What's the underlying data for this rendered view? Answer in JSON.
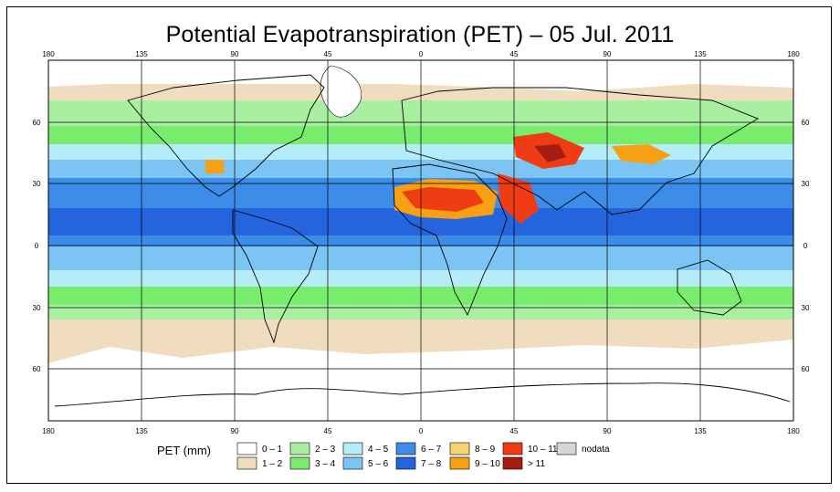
{
  "title": "Potential Evapotranspiration (PET) – 05 Jul. 2011",
  "map": {
    "lon_labels": [
      "180",
      "135",
      "90",
      "45",
      "0",
      "45",
      "90",
      "135",
      "180"
    ],
    "lat_labels": [
      "60",
      "30",
      "0",
      "30",
      "60"
    ]
  },
  "legend": {
    "title": "PET (mm)",
    "items": [
      {
        "label": "0 – 1",
        "color": "#ffffff"
      },
      {
        "label": "1 – 2",
        "color": "#f0dcbe"
      },
      {
        "label": "2 – 3",
        "color": "#a8f0a0"
      },
      {
        "label": "3 – 4",
        "color": "#78ec6c"
      },
      {
        "label": "4 – 5",
        "color": "#b4ecf8"
      },
      {
        "label": "5 – 6",
        "color": "#7cc4f4"
      },
      {
        "label": "6 – 7",
        "color": "#3c8ce8"
      },
      {
        "label": "7 – 8",
        "color": "#2464dc"
      },
      {
        "label": "8 – 9",
        "color": "#f8d470"
      },
      {
        "label": "9 – 10",
        "color": "#f8a014"
      },
      {
        "label": "10 – 11",
        "color": "#f03c14"
      },
      {
        "label": "> 11",
        "color": "#a41c14"
      },
      {
        "label": "nodata",
        "color": "#d6d6d6"
      }
    ]
  }
}
